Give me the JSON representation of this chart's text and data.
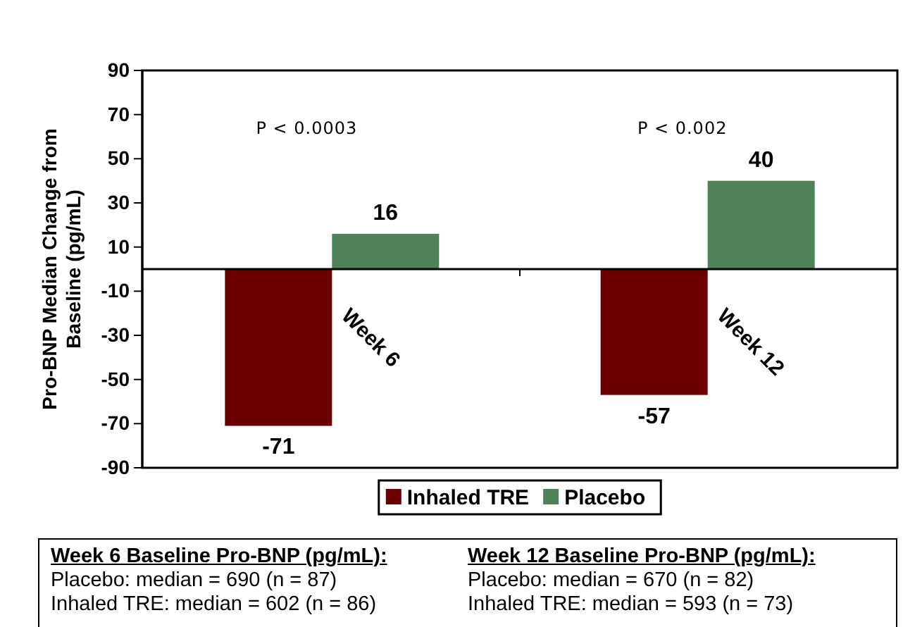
{
  "chart_data": {
    "type": "bar",
    "ylabel": "Pro-BNP Median Change from Baseline (pg/mL)",
    "categories": [
      "Week 6",
      "Week 12"
    ],
    "series": [
      {
        "name": "Inhaled TRE",
        "color": "#6b0000",
        "values": [
          -71,
          -57
        ]
      },
      {
        "name": "Placebo",
        "color": "#4f8259",
        "values": [
          16,
          40
        ]
      }
    ],
    "ylim": [
      -90,
      90
    ],
    "yticks": [
      -90,
      -70,
      -50,
      -30,
      -10,
      10,
      30,
      50,
      70,
      90
    ],
    "grid": false,
    "legend": "bottom",
    "data_labels": true,
    "annotations": [
      "P < 0.0003",
      "P < 0.002",
      "Week 6 Baseline Pro-BNP (pg/mL):",
      "Placebo: median = 690 (n = 87)",
      "Inhaled TRE: median = 602 (n = 86)",
      "Week 12 Baseline Pro-BNP (pg/mL):",
      "Placebo: median = 670 (n = 82)",
      "Inhaled TRE: median = 593 (n = 73)"
    ]
  }
}
